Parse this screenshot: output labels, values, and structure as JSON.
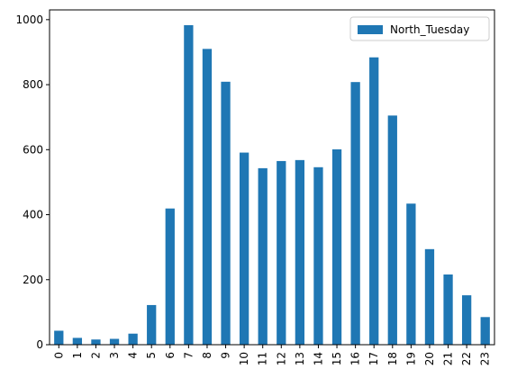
{
  "chart_data": {
    "type": "bar",
    "categories": [
      "0",
      "1",
      "2",
      "3",
      "4",
      "5",
      "6",
      "7",
      "8",
      "9",
      "10",
      "11",
      "12",
      "13",
      "14",
      "15",
      "16",
      "17",
      "18",
      "19",
      "20",
      "21",
      "22",
      "23"
    ],
    "series": [
      {
        "name": "North_Tuesday",
        "color": "#1f77b4",
        "values": [
          43,
          21,
          16,
          18,
          34,
          122,
          419,
          983,
          910,
          809,
          591,
          543,
          565,
          568,
          546,
          601,
          808,
          884,
          705,
          434,
          294,
          216,
          152,
          85
        ]
      }
    ],
    "title": "",
    "xlabel": "",
    "ylabel": "",
    "ylim": [
      0,
      1030
    ],
    "yticks": [
      0,
      200,
      400,
      600,
      800,
      1000
    ],
    "xtick_rotation": "vertical",
    "grid": false,
    "legend": {
      "position": "top-right",
      "entries": [
        "North_Tuesday"
      ]
    }
  }
}
